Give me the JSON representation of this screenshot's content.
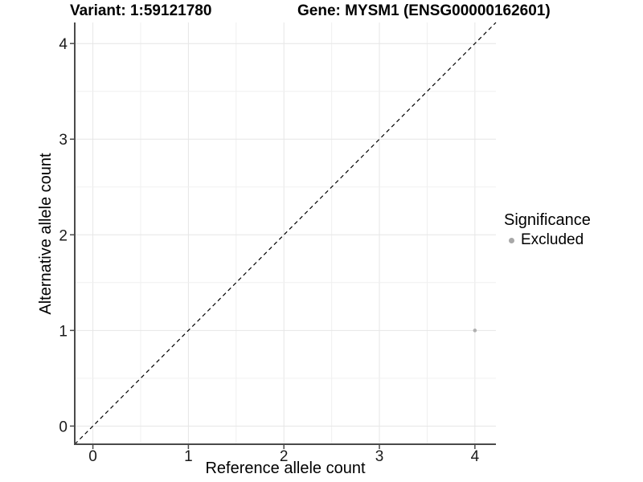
{
  "figure": {
    "title_left": "Variant: 1:59121780",
    "title_right": "Gene: MYSM1 (ENSG00000162601)"
  },
  "legend": {
    "title": "Significance",
    "entries": [
      {
        "label": "Excluded",
        "color": "#a8a8a8"
      }
    ]
  },
  "chart_data": {
    "type": "scatter",
    "title": "Variant: 1:59121780    Gene: MYSM1 (ENSG00000162601)",
    "xlabel": "Reference allele count",
    "ylabel": "Alternative allele count",
    "xlim": [
      -0.19,
      4.22
    ],
    "ylim": [
      -0.19,
      4.22
    ],
    "xticks": [
      0,
      1,
      2,
      3,
      4
    ],
    "yticks": [
      0,
      1,
      2,
      3,
      4
    ],
    "minor_grid_step": 0.5,
    "grid": "on",
    "legend_position": "right",
    "series": [
      {
        "name": "Excluded",
        "color": "#b0b0b0",
        "points": [
          {
            "x": 4,
            "y": 1
          }
        ]
      }
    ],
    "reference_line": {
      "type": "identity",
      "slope": 1,
      "intercept": 0,
      "style": "dashed",
      "color": "#000000"
    },
    "colors": {
      "grid_major": "#e6e6e6",
      "grid_minor": "#f0f0f0",
      "axis": "#4a4a4a",
      "tick_label": "#1a1a1a",
      "point_excluded": "#b0b0b0"
    }
  }
}
